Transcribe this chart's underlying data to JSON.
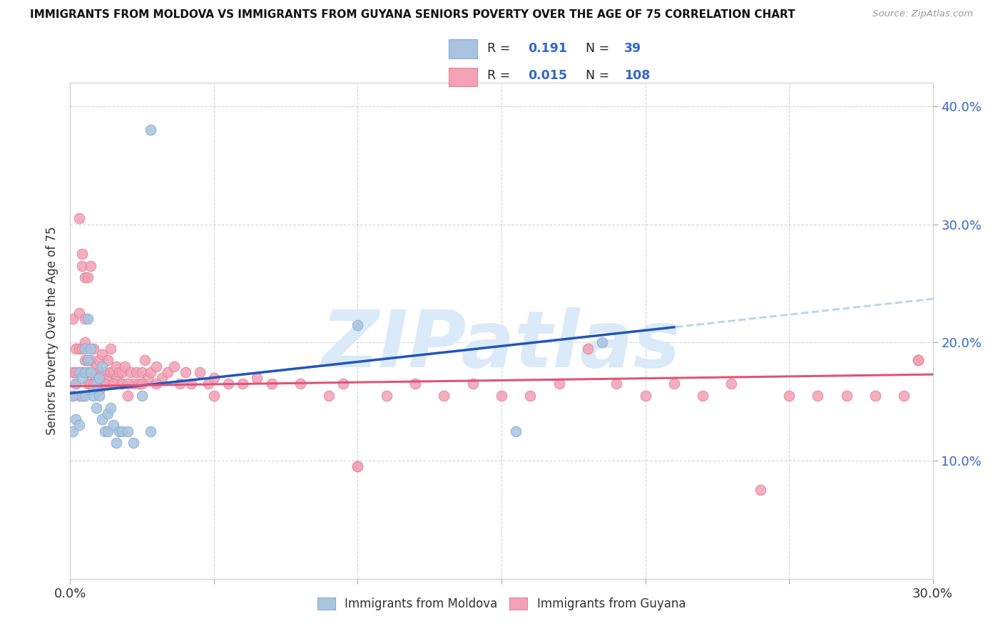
{
  "title": "IMMIGRANTS FROM MOLDOVA VS IMMIGRANTS FROM GUYANA SENIORS POVERTY OVER THE AGE OF 75 CORRELATION CHART",
  "source": "Source: ZipAtlas.com",
  "ylabel": "Seniors Poverty Over the Age of 75",
  "xlim": [
    0.0,
    0.3
  ],
  "ylim": [
    0.0,
    0.42
  ],
  "moldova_color": "#a8c4e0",
  "guyana_color": "#f4a0b5",
  "moldova_line_color": "#2255bb",
  "guyana_line_color": "#dd5577",
  "moldova_dashed_color": "#b8d4e8",
  "background_color": "#ffffff",
  "grid_color": "#cccccc",
  "legend_color": "#3366cc",
  "moldova_R": 0.191,
  "moldova_N": 39,
  "guyana_R": 0.015,
  "guyana_N": 108,
  "moldova_x": [
    0.001,
    0.001,
    0.002,
    0.002,
    0.003,
    0.003,
    0.004,
    0.004,
    0.005,
    0.005,
    0.005,
    0.006,
    0.006,
    0.007,
    0.007,
    0.008,
    0.008,
    0.009,
    0.009,
    0.01,
    0.01,
    0.011,
    0.011,
    0.012,
    0.013,
    0.013,
    0.014,
    0.015,
    0.016,
    0.017,
    0.018,
    0.02,
    0.022,
    0.025,
    0.028,
    0.028,
    0.1,
    0.155,
    0.185
  ],
  "moldova_y": [
    0.155,
    0.125,
    0.165,
    0.135,
    0.175,
    0.13,
    0.17,
    0.155,
    0.195,
    0.175,
    0.155,
    0.22,
    0.185,
    0.195,
    0.175,
    0.16,
    0.155,
    0.165,
    0.145,
    0.17,
    0.155,
    0.18,
    0.135,
    0.125,
    0.125,
    0.14,
    0.145,
    0.13,
    0.115,
    0.125,
    0.125,
    0.125,
    0.115,
    0.155,
    0.38,
    0.125,
    0.215,
    0.125,
    0.2
  ],
  "guyana_x": [
    0.001,
    0.001,
    0.001,
    0.002,
    0.002,
    0.002,
    0.003,
    0.003,
    0.003,
    0.004,
    0.004,
    0.004,
    0.004,
    0.005,
    0.005,
    0.005,
    0.006,
    0.006,
    0.006,
    0.007,
    0.007,
    0.007,
    0.008,
    0.008,
    0.008,
    0.009,
    0.009,
    0.01,
    0.01,
    0.01,
    0.011,
    0.011,
    0.012,
    0.012,
    0.013,
    0.013,
    0.014,
    0.014,
    0.015,
    0.015,
    0.016,
    0.016,
    0.017,
    0.018,
    0.018,
    0.019,
    0.02,
    0.021,
    0.022,
    0.023,
    0.024,
    0.025,
    0.026,
    0.027,
    0.028,
    0.03,
    0.032,
    0.034,
    0.036,
    0.038,
    0.04,
    0.042,
    0.045,
    0.048,
    0.05,
    0.055,
    0.06,
    0.065,
    0.07,
    0.08,
    0.09,
    0.095,
    0.1,
    0.11,
    0.12,
    0.13,
    0.14,
    0.15,
    0.16,
    0.17,
    0.18,
    0.19,
    0.2,
    0.21,
    0.22,
    0.23,
    0.24,
    0.25,
    0.26,
    0.27,
    0.28,
    0.29,
    0.295,
    0.003,
    0.004,
    0.005,
    0.006,
    0.007,
    0.01,
    0.012,
    0.015,
    0.018,
    0.02,
    0.025,
    0.03,
    0.05,
    0.1,
    0.295
  ],
  "guyana_y": [
    0.175,
    0.155,
    0.22,
    0.195,
    0.165,
    0.175,
    0.225,
    0.195,
    0.155,
    0.265,
    0.195,
    0.175,
    0.155,
    0.22,
    0.2,
    0.185,
    0.185,
    0.175,
    0.165,
    0.175,
    0.185,
    0.165,
    0.175,
    0.165,
    0.195,
    0.18,
    0.17,
    0.175,
    0.185,
    0.16,
    0.19,
    0.175,
    0.175,
    0.165,
    0.185,
    0.17,
    0.195,
    0.175,
    0.175,
    0.165,
    0.18,
    0.17,
    0.175,
    0.175,
    0.165,
    0.18,
    0.155,
    0.175,
    0.165,
    0.175,
    0.165,
    0.175,
    0.185,
    0.17,
    0.175,
    0.18,
    0.17,
    0.175,
    0.18,
    0.165,
    0.175,
    0.165,
    0.175,
    0.165,
    0.17,
    0.165,
    0.165,
    0.17,
    0.165,
    0.165,
    0.155,
    0.165,
    0.095,
    0.155,
    0.165,
    0.155,
    0.165,
    0.155,
    0.155,
    0.165,
    0.195,
    0.165,
    0.155,
    0.165,
    0.155,
    0.165,
    0.075,
    0.155,
    0.155,
    0.155,
    0.155,
    0.155,
    0.185,
    0.305,
    0.275,
    0.255,
    0.255,
    0.265,
    0.17,
    0.165,
    0.165,
    0.165,
    0.165,
    0.165,
    0.165,
    0.155,
    0.095,
    0.185
  ],
  "watermark": "ZIPatlas",
  "watermark_color": "#daeaf8"
}
